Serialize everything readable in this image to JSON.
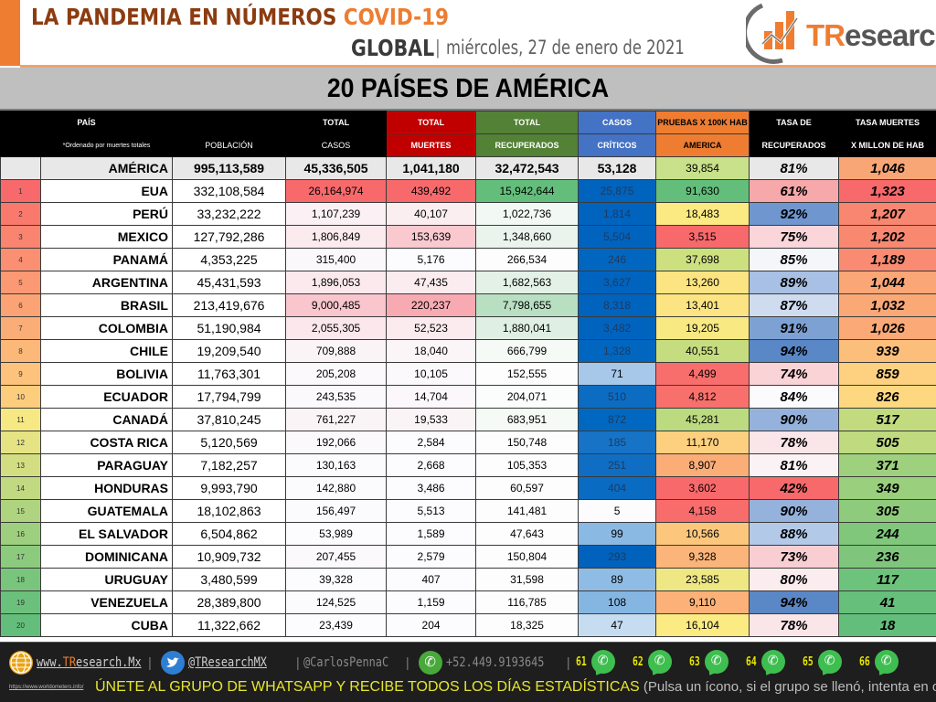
{
  "header": {
    "title_main": "LA PANDEMIA EN NÚMEROS ",
    "title_accent": "COVID-19",
    "scope": "GLOBAL",
    "separator": "|",
    "date": "miércoles, 27 de enero de 2021",
    "date_separator": "|",
    "logo_text_t": "TR",
    "logo_text_rest": "esearch",
    "colors": {
      "brand_orange": "#ee7d31",
      "title_brown": "#8c3c11"
    }
  },
  "banner": {
    "title": "20 PAÍSES DE AMÉRICA"
  },
  "table": {
    "headers": {
      "country_top": "PAÍS",
      "country_note": "*Ordenado por muertes totales",
      "population_bottom": "POBLACIÓN",
      "cases_top": "TOTAL",
      "cases_bottom": "CASOS",
      "deaths_top": "TOTAL",
      "deaths_bottom": "MUERTES",
      "recovered_top": "TOTAL",
      "recovered_bottom": "RECUPERADOS",
      "critical_top": "CASOS",
      "critical_bottom": "CRÍTICOS",
      "tests_top": "PRUEBAS X 100K HAB",
      "tests_bottom": "AMERICA",
      "recovery_rate_top": "TASA DE",
      "recovery_rate_bottom": "RECUPERADOS",
      "death_rate_top": "TASA MUERTES",
      "death_rate_bottom": "X MILLON DE HAB"
    },
    "total": {
      "country": "AMÉRICA",
      "population": "995,113,589",
      "cases": "45,336,505",
      "deaths": "1,041,180",
      "recovered": "32,472,543",
      "critical": "53,128",
      "tests": "39,854",
      "recovery_rate": "81%",
      "death_rate": "1,046",
      "colors": {
        "tests": "#c9e18a",
        "death_rate": "#f8a676"
      }
    },
    "rows": [
      {
        "rank": "1",
        "country": "EUA",
        "population": "332,108,584",
        "cases": "26,164,974",
        "deaths": "439,492",
        "recovered": "15,942,644",
        "critical": "25,875",
        "tests": "91,630",
        "recovery_rate": "61%",
        "death_rate": "1,323",
        "colors": {
          "rank": "#f8696b",
          "cases": "#f8696b",
          "deaths": "#f8696b",
          "recovered": "#63be7b",
          "critical": "#0063be",
          "tests": "#63be7b",
          "recovery_rate": "#f7a8aa",
          "death_rate": "#f8696b"
        }
      },
      {
        "rank": "2",
        "country": "PERÚ",
        "population": "33,232,222",
        "cases": "1,107,239",
        "deaths": "40,107",
        "recovered": "1,022,736",
        "critical": "1,814",
        "tests": "18,483",
        "recovery_rate": "92%",
        "death_rate": "1,207",
        "colors": {
          "rank": "#f97a6d",
          "cases": "#fbf1f4",
          "deaths": "#fbeef1",
          "recovered": "#f2f8f3",
          "critical": "#0063be",
          "tests": "#fbe982",
          "recovery_rate": "#6f96cf",
          "death_rate": "#f98670"
        }
      },
      {
        "rank": "3",
        "country": "MEXICO",
        "population": "127,792,286",
        "cases": "1,806,849",
        "deaths": "153,639",
        "recovered": "1,348,660",
        "critical": "5,504",
        "tests": "3,515",
        "recovery_rate": "75%",
        "death_rate": "1,202",
        "colors": {
          "rank": "#f98470",
          "cases": "#fbeaee",
          "deaths": "#f9c9cf",
          "recovered": "#eaf4ec",
          "critical": "#0063be",
          "tests": "#f8696b",
          "recovery_rate": "#fad6da",
          "death_rate": "#f98871"
        }
      },
      {
        "rank": "4",
        "country": "PANAMÁ",
        "population": "4,353,225",
        "cases": "315,400",
        "deaths": "5,176",
        "recovered": "266,534",
        "critical": "246",
        "tests": "37,698",
        "recovery_rate": "85%",
        "death_rate": "1,189",
        "colors": {
          "rank": "#fa8f71",
          "cases": "#fbf8fb",
          "deaths": "#fcfbfe",
          "recovered": "#fcfdfc",
          "critical": "#0066c0",
          "tests": "#cde07f",
          "recovery_rate": "#f5f6fa",
          "death_rate": "#f98b72"
        }
      },
      {
        "rank": "5",
        "country": "ARGENTINA",
        "population": "45,431,593",
        "cases": "1,896,053",
        "deaths": "47,435",
        "recovered": "1,682,563",
        "critical": "3,627",
        "tests": "13,260",
        "recovery_rate": "89%",
        "death_rate": "1,044",
        "colors": {
          "rank": "#fa9973",
          "cases": "#fbe9ee",
          "deaths": "#fbecf0",
          "recovered": "#e3f1e6",
          "critical": "#0063be",
          "tests": "#fde482",
          "recovery_rate": "#a7c0e3",
          "death_rate": "#fba676"
        }
      },
      {
        "rank": "6",
        "country": "BRASIL",
        "population": "213,419,676",
        "cases": "9,000,485",
        "deaths": "220,237",
        "recovered": "7,798,655",
        "critical": "8,318",
        "tests": "13,401",
        "recovery_rate": "87%",
        "death_rate": "1,032",
        "colors": {
          "rank": "#fba375",
          "cases": "#f9c6cd",
          "deaths": "#f8aab2",
          "recovered": "#b9dfc2",
          "critical": "#0063be",
          "tests": "#fde482",
          "recovery_rate": "#cfdbef",
          "death_rate": "#fba877"
        }
      },
      {
        "rank": "7",
        "country": "COLOMBIA",
        "population": "51,190,984",
        "cases": "2,055,305",
        "deaths": "52,523",
        "recovered": "1,880,041",
        "critical": "3,482",
        "tests": "19,205",
        "recovery_rate": "91%",
        "death_rate": "1,026",
        "colors": {
          "rank": "#fbad77",
          "cases": "#fbe7ec",
          "deaths": "#fbeaee",
          "recovered": "#e0efe3",
          "critical": "#0063be",
          "tests": "#f8e983",
          "recovery_rate": "#7ea1d4",
          "death_rate": "#fbaa77"
        }
      },
      {
        "rank": "8",
        "country": "CHILE",
        "population": "19,209,540",
        "cases": "709,888",
        "deaths": "18,040",
        "recovered": "666,799",
        "critical": "1,328",
        "tests": "40,551",
        "recovery_rate": "94%",
        "death_rate": "939",
        "colors": {
          "rank": "#fcb879",
          "cases": "#fbf4f7",
          "deaths": "#fbf5f8",
          "recovered": "#f6faf7",
          "critical": "#0066c0",
          "tests": "#c6dd7f",
          "recovery_rate": "#5a87c6",
          "death_rate": "#fcbe7b"
        }
      },
      {
        "rank": "9",
        "country": "BOLIVIA",
        "population": "11,763,301",
        "cases": "205,208",
        "deaths": "10,105",
        "recovered": "152,555",
        "critical": "71",
        "tests": "4,499",
        "recovery_rate": "74%",
        "death_rate": "859",
        "colors": {
          "rank": "#fdc37c",
          "cases": "#fbf9fc",
          "deaths": "#fbf9fc",
          "recovered": "#fcfdfc",
          "critical": "#a8c8ea",
          "tests": "#f86e6c",
          "recovery_rate": "#fad3d7",
          "death_rate": "#fdd17f"
        }
      },
      {
        "rank": "10",
        "country": "ECUADOR",
        "population": "17,794,799",
        "cases": "243,535",
        "deaths": "14,704",
        "recovered": "204,071",
        "critical": "510",
        "tests": "4,812",
        "recovery_rate": "84%",
        "death_rate": "826",
        "colors": {
          "rank": "#fdcd7e",
          "cases": "#fbf9fc",
          "deaths": "#fbf7fa",
          "recovered": "#fbfdfc",
          "critical": "#0c6cc2",
          "tests": "#f8706c",
          "recovery_rate": "#fbfbfe",
          "death_rate": "#fed880"
        }
      },
      {
        "rank": "11",
        "country": "CANADÁ",
        "population": "37,810,245",
        "cases": "761,227",
        "deaths": "19,533",
        "recovered": "683,951",
        "critical": "872",
        "tests": "45,281",
        "recovery_rate": "90%",
        "death_rate": "517",
        "colors": {
          "rank": "#f6e883",
          "cases": "#fbf4f7",
          "deaths": "#fbf4f7",
          "recovered": "#f5faf6",
          "critical": "#0068c0",
          "tests": "#bcda7f",
          "recovery_rate": "#95b2dc",
          "death_rate": "#c2db7f"
        }
      },
      {
        "rank": "12",
        "country": "COSTA RICA",
        "population": "5,120,569",
        "cases": "192,066",
        "deaths": "2,584",
        "recovered": "150,748",
        "critical": "185",
        "tests": "11,170",
        "recovery_rate": "78%",
        "death_rate": "505",
        "colors": {
          "rank": "#e5e383",
          "cases": "#fbf9fc",
          "deaths": "#fcfcff",
          "recovered": "#fcfdfc",
          "critical": "#1673c6",
          "tests": "#fdd07f",
          "recovery_rate": "#fae5e8",
          "death_rate": "#bfda7f"
        }
      },
      {
        "rank": "13",
        "country": "PARAGUAY",
        "population": "7,182,257",
        "cases": "130,163",
        "deaths": "2,668",
        "recovered": "105,353",
        "critical": "251",
        "tests": "8,907",
        "recovery_rate": "81%",
        "death_rate": "371",
        "colors": {
          "rank": "#d3de82",
          "cases": "#fbfafd",
          "deaths": "#fcfcff",
          "recovered": "#fcfdfc",
          "critical": "#0f6ec3",
          "tests": "#fbad77",
          "recovery_rate": "#fbf2f5",
          "death_rate": "#9ed07e"
        }
      },
      {
        "rank": "14",
        "country": "HONDURAS",
        "population": "9,993,790",
        "cases": "142,880",
        "deaths": "3,486",
        "recovered": "60,597",
        "critical": "404",
        "tests": "3,602",
        "recovery_rate": "42%",
        "death_rate": "349",
        "colors": {
          "rank": "#c1d980",
          "cases": "#fbfafd",
          "deaths": "#fcfbfe",
          "recovered": "#fcfdfc",
          "critical": "#0a6bc2",
          "tests": "#f8696b",
          "recovery_rate": "#f8696b",
          "death_rate": "#9acf7d"
        }
      },
      {
        "rank": "15",
        "country": "GUATEMALA",
        "population": "18,102,863",
        "cases": "156,497",
        "deaths": "5,513",
        "recovered": "141,481",
        "critical": "5",
        "tests": "4,158",
        "recovery_rate": "90%",
        "death_rate": "305",
        "colors": {
          "rank": "#afd47f",
          "cases": "#fbfafd",
          "deaths": "#fcfbfe",
          "recovered": "#fcfdfc",
          "critical": "#fcfcff",
          "tests": "#f86c6b",
          "recovery_rate": "#95b2dc",
          "death_rate": "#8fcb7c"
        }
      },
      {
        "rank": "16",
        "country": "EL SALVADOR",
        "population": "6,504,862",
        "cases": "53,989",
        "deaths": "1,589",
        "recovered": "47,643",
        "critical": "99",
        "tests": "10,566",
        "recovery_rate": "88%",
        "death_rate": "244",
        "colors": {
          "rank": "#9ecf7e",
          "cases": "#fcfbfe",
          "deaths": "#fcfcff",
          "recovered": "#fcfdfc",
          "critical": "#8ab9e3",
          "tests": "#fcc77d",
          "recovery_rate": "#b3c9e8",
          "death_rate": "#80c77c"
        }
      },
      {
        "rank": "17",
        "country": "DOMINICANA",
        "population": "10,909,732",
        "cases": "207,455",
        "deaths": "2,579",
        "recovered": "150,804",
        "critical": "293",
        "tests": "9,328",
        "recovery_rate": "73%",
        "death_rate": "236",
        "colors": {
          "rank": "#8cca7d",
          "cases": "#fbf9fc",
          "deaths": "#fcfcff",
          "recovered": "#fcfdfc",
          "critical": "#0062bc",
          "tests": "#fbb479",
          "recovery_rate": "#f9ced3",
          "death_rate": "#7fc67c"
        }
      },
      {
        "rank": "18",
        "country": "URUGUAY",
        "population": "3,480,599",
        "cases": "39,328",
        "deaths": "407",
        "recovered": "31,598",
        "critical": "89",
        "tests": "23,585",
        "recovery_rate": "80%",
        "death_rate": "117",
        "colors": {
          "rank": "#7ac57c",
          "cases": "#fcfbfe",
          "deaths": "#fcfcff",
          "recovered": "#fcfdfc",
          "critical": "#8fbce5",
          "tests": "#eee783",
          "recovery_rate": "#fbecef",
          "death_rate": "#6dc27c"
        }
      },
      {
        "rank": "19",
        "country": "VENEZUELA",
        "population": "28,389,800",
        "cases": "124,525",
        "deaths": "1,159",
        "recovered": "116,785",
        "critical": "108",
        "tests": "9,110",
        "recovery_rate": "94%",
        "death_rate": "41",
        "colors": {
          "rank": "#6bc17b",
          "cases": "#fbfafd",
          "deaths": "#fcfcff",
          "recovered": "#fcfdfc",
          "critical": "#85b6e2",
          "tests": "#fbb178",
          "recovery_rate": "#5a87c6",
          "death_rate": "#66bf7b"
        }
      },
      {
        "rank": "20",
        "country": "CUBA",
        "population": "11,322,662",
        "cases": "23,439",
        "deaths": "204",
        "recovered": "18,325",
        "critical": "47",
        "tests": "16,104",
        "recovery_rate": "78%",
        "death_rate": "18",
        "colors": {
          "rank": "#63be7b",
          "cases": "#fcfbfe",
          "deaths": "#fcfcff",
          "recovered": "#fcfdfc",
          "critical": "#c6dcf1",
          "tests": "#fcea83",
          "recovery_rate": "#fae5e8",
          "death_rate": "#63be7b"
        }
      }
    ]
  },
  "footer": {
    "website_prefix": "www.",
    "website_brand": "TR",
    "website_rest": "esearch.Mx",
    "twitter": "@TResearchMX",
    "twitter2": "@CarlosPennaC",
    "phone": "+52.449.9193645",
    "bar": "|",
    "source_url": "https://www.worldometers.info/",
    "whatsapp_groups": [
      "61",
      "62",
      "63",
      "64",
      "65",
      "66"
    ],
    "cta": "ÚNETE AL GRUPO DE WHATSAPP Y RECIBE TODOS LOS DÍAS ESTADÍSTICAS",
    "cta_note": " (Pulsa un ícono, si el grupo se llenó, intenta en otro)"
  },
  "chart_data": {
    "type": "table",
    "title": "LA PANDEMIA EN NÚMEROS COVID-19 GLOBAL — 20 PAÍSES DE AMÉRICA",
    "subtitle": "miércoles, 27 de enero de 2021",
    "columns": [
      "#",
      "PAÍS",
      "POBLACIÓN",
      "TOTAL CASOS",
      "TOTAL MUERTES",
      "TOTAL RECUPERADOS",
      "CASOS CRÍTICOS",
      "PRUEBAS X 100K HAB AMERICA",
      "TASA DE RECUPERADOS",
      "TASA MUERTES X MILLON DE HAB"
    ],
    "note": "*Ordenado por muertes totales",
    "total": [
      "",
      "AMÉRICA",
      995113589,
      45336505,
      1041180,
      32472543,
      53128,
      39854,
      0.81,
      1046
    ],
    "rows": [
      [
        1,
        "EUA",
        332108584,
        26164974,
        439492,
        15942644,
        25875,
        91630,
        0.61,
        1323
      ],
      [
        2,
        "PERÚ",
        33232222,
        1107239,
        40107,
        1022736,
        1814,
        18483,
        0.92,
        1207
      ],
      [
        3,
        "MEXICO",
        127792286,
        1806849,
        153639,
        1348660,
        5504,
        3515,
        0.75,
        1202
      ],
      [
        4,
        "PANAMÁ",
        4353225,
        315400,
        5176,
        266534,
        246,
        37698,
        0.85,
        1189
      ],
      [
        5,
        "ARGENTINA",
        45431593,
        1896053,
        47435,
        1682563,
        3627,
        13260,
        0.89,
        1044
      ],
      [
        6,
        "BRASIL",
        213419676,
        9000485,
        220237,
        7798655,
        8318,
        13401,
        0.87,
        1032
      ],
      [
        7,
        "COLOMBIA",
        51190984,
        2055305,
        52523,
        1880041,
        3482,
        19205,
        0.91,
        1026
      ],
      [
        8,
        "CHILE",
        19209540,
        709888,
        18040,
        666799,
        1328,
        40551,
        0.94,
        939
      ],
      [
        9,
        "BOLIVIA",
        11763301,
        205208,
        10105,
        152555,
        71,
        4499,
        0.74,
        859
      ],
      [
        10,
        "ECUADOR",
        17794799,
        243535,
        14704,
        204071,
        510,
        4812,
        0.84,
        826
      ],
      [
        11,
        "CANADÁ",
        37810245,
        761227,
        19533,
        683951,
        872,
        45281,
        0.9,
        517
      ],
      [
        12,
        "COSTA RICA",
        5120569,
        192066,
        2584,
        150748,
        185,
        11170,
        0.78,
        505
      ],
      [
        13,
        "PARAGUAY",
        7182257,
        130163,
        2668,
        105353,
        251,
        8907,
        0.81,
        371
      ],
      [
        14,
        "HONDURAS",
        9993790,
        142880,
        3486,
        60597,
        404,
        3602,
        0.42,
        349
      ],
      [
        15,
        "GUATEMALA",
        18102863,
        156497,
        5513,
        141481,
        5,
        4158,
        0.9,
        305
      ],
      [
        16,
        "EL SALVADOR",
        6504862,
        53989,
        1589,
        47643,
        99,
        10566,
        0.88,
        244
      ],
      [
        17,
        "DOMINICANA",
        10909732,
        207455,
        2579,
        150804,
        293,
        9328,
        0.73,
        236
      ],
      [
        18,
        "URUGUAY",
        3480599,
        39328,
        407,
        31598,
        89,
        23585,
        0.8,
        117
      ],
      [
        19,
        "VENEZUELA",
        28389800,
        124525,
        1159,
        116785,
        108,
        9110,
        0.94,
        41
      ],
      [
        20,
        "CUBA",
        11322662,
        23439,
        204,
        18325,
        47,
        16104,
        0.78,
        18
      ]
    ]
  }
}
